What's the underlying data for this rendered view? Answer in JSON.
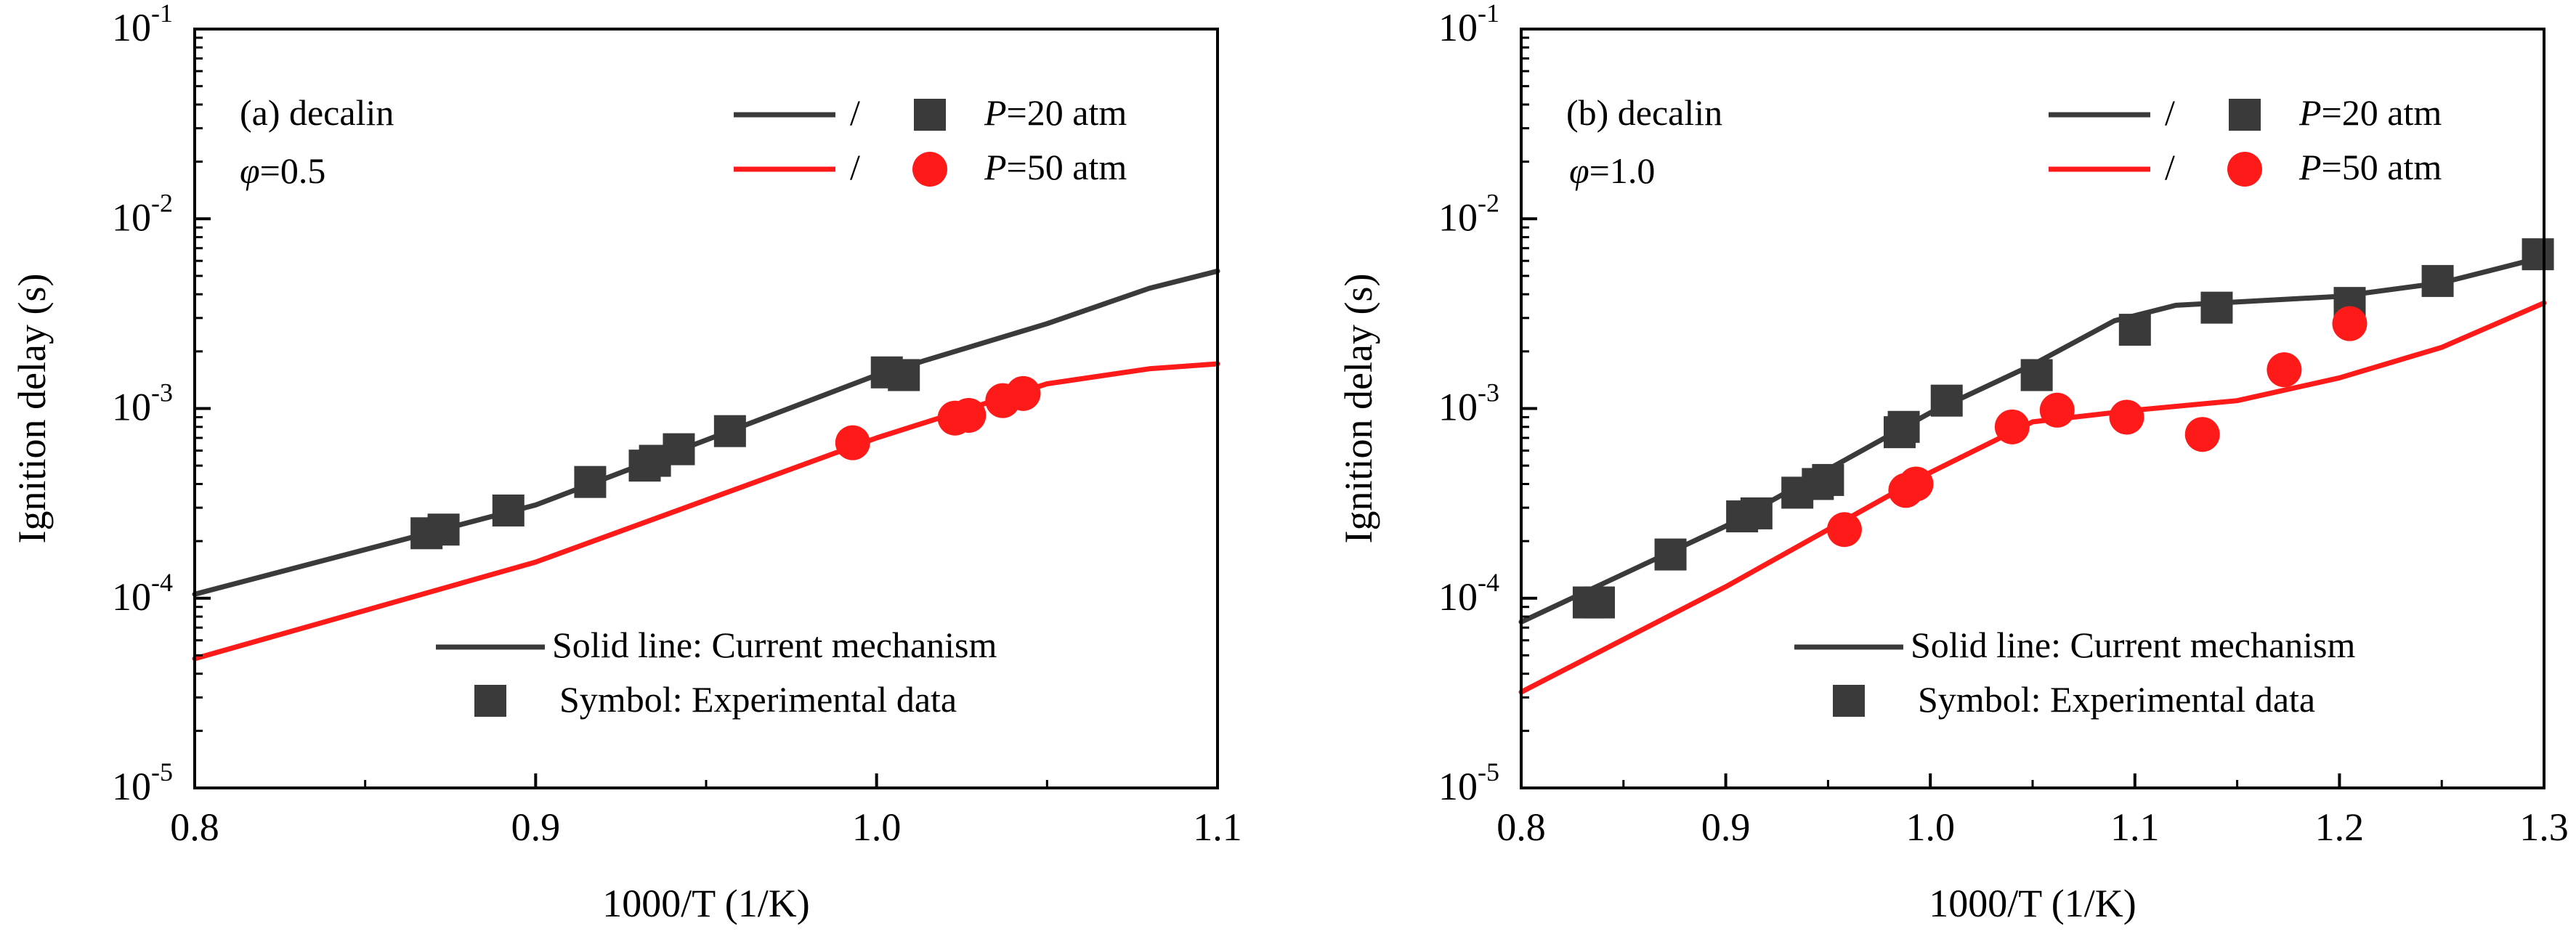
{
  "chart_data": [
    {
      "type": "line+scatter",
      "panel_label": "(a) decalin",
      "condition_symbol": "φ",
      "condition_value": "=0.5",
      "xlabel": "1000/T (1/K)",
      "ylabel": "Ignition delay (s)",
      "xlim": [
        0.8,
        1.1
      ],
      "ylim": [
        1e-05,
        0.1
      ],
      "yscale": "log",
      "x_ticks": [
        "0.8",
        "0.9",
        "1.0",
        "1.1"
      ],
      "y_ticks": [
        {
          "base": "10",
          "exp": "-5"
        },
        {
          "base": "10",
          "exp": "-4"
        },
        {
          "base": "10",
          "exp": "-3"
        },
        {
          "base": "10",
          "exp": "-2"
        },
        {
          "base": "10",
          "exp": "-1"
        }
      ],
      "legend": {
        "slash": "/",
        "p_symbol": "P",
        "entries": [
          {
            "series": "P=20 atm",
            "value_text": "=20 atm"
          },
          {
            "series": "P=50 atm",
            "value_text": "=50 atm"
          }
        ],
        "note_line": "Solid line: Current mechanism",
        "note_symbol": "Symbol: Experimental data"
      },
      "series": [
        {
          "name": "P=20 atm",
          "kind": "line",
          "color": "#3a3a3a",
          "x": [
            0.8,
            0.9,
            1.0,
            1.05,
            1.08,
            1.1
          ],
          "y": [
            0.000105,
            0.00031,
            0.0015,
            0.0028,
            0.0043,
            0.0053
          ]
        },
        {
          "name": "P=50 atm",
          "kind": "line",
          "color": "#ff1a1a",
          "x": [
            0.8,
            0.9,
            1.0,
            1.05,
            1.08,
            1.1
          ],
          "y": [
            4.8e-05,
            0.000155,
            0.0007,
            0.00135,
            0.00162,
            0.00172
          ]
        },
        {
          "name": "P=20 atm",
          "kind": "scatter",
          "marker": "square",
          "color": "#3a3a3a",
          "x": [
            0.868,
            0.873,
            0.892,
            0.916,
            0.932,
            0.935,
            0.942,
            0.957,
            1.003,
            1.008
          ],
          "y": [
            0.00022,
            0.00023,
            0.00029,
            0.00041,
            0.0005,
            0.00053,
            0.00061,
            0.00076,
            0.00155,
            0.0015
          ]
        },
        {
          "name": "P=50 atm",
          "kind": "scatter",
          "marker": "circle",
          "color": "#ff1a1a",
          "x": [
            0.993,
            1.023,
            1.027,
            1.037,
            1.043
          ],
          "y": [
            0.00066,
            0.00089,
            0.00092,
            0.0011,
            0.0012
          ]
        }
      ]
    },
    {
      "type": "line+scatter",
      "panel_label": "(b) decalin",
      "condition_symbol": "φ",
      "condition_value": "=1.0",
      "xlabel": "1000/T (1/K)",
      "ylabel": "Ignition delay (s)",
      "xlim": [
        0.8,
        1.3
      ],
      "ylim": [
        1e-05,
        0.1
      ],
      "yscale": "log",
      "x_ticks": [
        "0.8",
        "0.9",
        "1.0",
        "1.1",
        "1.2",
        "1.3"
      ],
      "y_ticks": [
        {
          "base": "10",
          "exp": "-5"
        },
        {
          "base": "10",
          "exp": "-4"
        },
        {
          "base": "10",
          "exp": "-3"
        },
        {
          "base": "10",
          "exp": "-2"
        },
        {
          "base": "10",
          "exp": "-1"
        }
      ],
      "legend": {
        "slash": "/",
        "p_symbol": "P",
        "entries": [
          {
            "series": "P=20 atm",
            "value_text": "=20 atm"
          },
          {
            "series": "P=50 atm",
            "value_text": "=50 atm"
          }
        ],
        "note_line": "Solid line: Current mechanism",
        "note_symbol": "Symbol: Experimental data"
      },
      "series": [
        {
          "name": "P=20 atm",
          "kind": "line",
          "color": "#3a3a3a",
          "x": [
            0.8,
            0.9,
            1.0,
            1.05,
            1.09,
            1.12,
            1.2,
            1.25,
            1.3
          ],
          "y": [
            7.5e-05,
            0.00024,
            0.00095,
            0.0017,
            0.0029,
            0.0035,
            0.0039,
            0.0046,
            0.0063
          ]
        },
        {
          "name": "P=50 atm",
          "kind": "line",
          "color": "#ff1a1a",
          "x": [
            0.8,
            0.9,
            1.0,
            1.05,
            1.1,
            1.15,
            1.2,
            1.25,
            1.3
          ],
          "y": [
            3.2e-05,
            0.000115,
            0.00046,
            0.00085,
            0.00098,
            0.0011,
            0.00145,
            0.0021,
            0.0036
          ]
        },
        {
          "name": "P=20 atm",
          "kind": "scatter",
          "marker": "square",
          "color": "#3a3a3a",
          "x": [
            0.833,
            0.838,
            0.873,
            0.908,
            0.915,
            0.935,
            0.945,
            0.95,
            0.985,
            0.987,
            1.008,
            1.052,
            1.1,
            1.14,
            1.205,
            1.248,
            1.297
          ],
          "y": [
            9.5e-05,
            9.5e-05,
            0.00017,
            0.00027,
            0.00028,
            0.00036,
            0.0004,
            0.00042,
            0.00075,
            0.0008,
            0.0011,
            0.0015,
            0.0026,
            0.0034,
            0.0036,
            0.0047,
            0.0065
          ]
        },
        {
          "name": "P=50 atm",
          "kind": "scatter",
          "marker": "circle",
          "color": "#ff1a1a",
          "x": [
            0.958,
            0.988,
            0.993,
            1.04,
            1.062,
            1.096,
            1.133,
            1.173,
            1.205
          ],
          "y": [
            0.00023,
            0.00037,
            0.0004,
            0.0008,
            0.00098,
            0.0009,
            0.00073,
            0.0016,
            0.0028
          ]
        }
      ]
    }
  ]
}
